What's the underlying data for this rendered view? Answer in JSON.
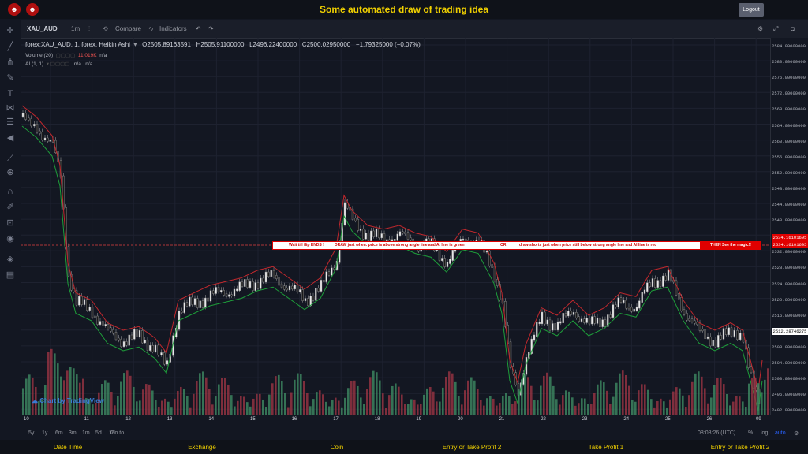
{
  "header": {
    "title": "Some automated draw of trading idea",
    "logout_label": "Logout"
  },
  "toolbar": {
    "symbol": "XAU_AUD",
    "interval": "1m",
    "compare_label": "Compare",
    "indicators_label": "Indicators"
  },
  "legend": {
    "main": "forex:XAU_AUD, 1, forex, Heikin Ashi",
    "open": "O2505.89163591",
    "high": "H2505.91100000",
    "low": "L2496.22400000",
    "close": "C2500.02950000",
    "change": "−1.79325000 (−0.07%)",
    "volume_label": "Volume (20)",
    "volume_value": "11.019K",
    "volume_na": "n/a",
    "ind2_label": "AI (1, 1)",
    "ind2_na1": "n/a",
    "ind2_na2": "n/a"
  },
  "banner": {
    "part1": "Wait till flip ENDS !",
    "part2": "DRAW just when: price is above strong angle line and AI line is green",
    "part3": "OR",
    "part4": "draw shorts just when price still below strong angle line and AI line is red",
    "end": "THEN See the magic!!"
  },
  "price_axis": {
    "labels": [
      "2584.00000000",
      "2580.00000000",
      "2576.00000000",
      "2572.00000000",
      "2568.00000000",
      "2564.00000000",
      "2560.00000000",
      "2556.00000000",
      "2552.00000000",
      "2548.00000000",
      "2544.00000000",
      "2540.00000000",
      "2536.00000000",
      "2532.00000000",
      "2528.00000000",
      "2524.00000000",
      "2520.00000000",
      "2516.00000000",
      "2512.00000000",
      "2508.00000000",
      "2504.00000000",
      "2500.00000000",
      "2496.00000000",
      "2492.00000000"
    ],
    "marker1": "2534.16101695",
    "marker2": "2534.16101695",
    "current": "2512.28746275"
  },
  "time_axis": {
    "labels": [
      "10",
      "11",
      "12",
      "13",
      "14",
      "15",
      "16",
      "17",
      "18",
      "19",
      "20",
      "21",
      "22",
      "23",
      "24",
      "25",
      "26",
      "09"
    ]
  },
  "range_bar": {
    "ranges": [
      "5y",
      "1y",
      "6m",
      "3m",
      "1m",
      "5d",
      "1d"
    ],
    "goto": "Go to...",
    "clock": "08:08:26 (UTC)",
    "percent": "%",
    "log": "log",
    "auto": "auto"
  },
  "watermark": "Chart by TradingView",
  "footer": {
    "cols": [
      "Date Time",
      "Exchange",
      "Coin",
      "Entry or Take Profit 2",
      "Take Profit 1",
      "Entry or Take Profit 2"
    ]
  },
  "colors": {
    "bull": "#26a69a",
    "bear": "#ef5350",
    "bg": "#131722",
    "accent": "#f0d000"
  }
}
